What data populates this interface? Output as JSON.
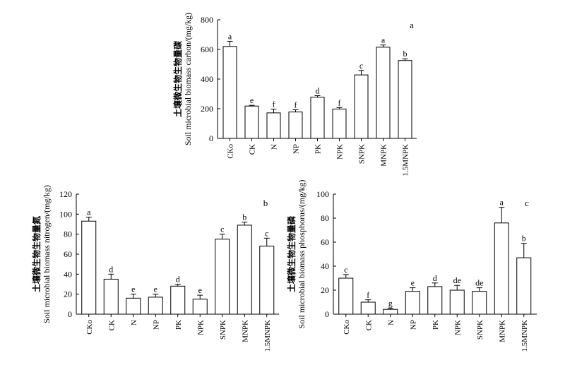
{
  "chart_data": [
    {
      "type": "bar",
      "panel_label": "a",
      "ylabel_cn": "土壤微生物生物量碳",
      "ylabel_en": "Soil microbial biomass carbon/(mg/kg)",
      "ylim": [
        0,
        800
      ],
      "yticks": [
        0,
        200,
        400,
        600,
        800
      ],
      "categories": [
        "CKo",
        "CK",
        "N",
        "NP",
        "PK",
        "NPK",
        "SNPK",
        "MNPK",
        "1.5MNPK"
      ],
      "values": [
        620,
        218,
        172,
        178,
        278,
        198,
        428,
        615,
        525
      ],
      "errors": [
        35,
        5,
        25,
        15,
        10,
        10,
        30,
        15,
        12
      ],
      "letters": [
        "a",
        "e",
        "f",
        "f",
        "d",
        "f",
        "c",
        "a",
        "b"
      ]
    },
    {
      "type": "bar",
      "panel_label": "b",
      "ylabel_cn": "土壤微生物生物量氮",
      "ylabel_en": "Soil microbial biomass nitrogen/(mg/kg)",
      "ylim": [
        0,
        120
      ],
      "yticks": [
        0,
        20,
        40,
        60,
        80,
        100,
        120
      ],
      "categories": [
        "CKo",
        "CK",
        "N",
        "NP",
        "PK",
        "NPK",
        "SNPK",
        "MNPK",
        "1.5MNPK"
      ],
      "values": [
        93,
        35,
        16,
        17,
        28,
        15,
        75,
        89,
        68
      ],
      "errors": [
        4,
        5,
        4,
        3,
        2,
        4,
        5,
        3,
        8
      ],
      "letters": [
        "a",
        "d",
        "e",
        "e",
        "d",
        "e",
        "c",
        "b",
        "c"
      ]
    },
    {
      "type": "bar",
      "panel_label": "c",
      "ylabel_cn": "土壤微生物生物量磷",
      "ylabel_en": "Soil microbial biomass phosphorus/(mg/kg)",
      "ylim": [
        0,
        100
      ],
      "yticks": [
        0,
        20,
        40,
        60,
        80,
        100
      ],
      "categories": [
        "CKo",
        "CK",
        "N",
        "NP",
        "PK",
        "NPK",
        "SNPK",
        "MNPK",
        "1.5MNPK"
      ],
      "values": [
        30,
        10,
        4,
        19,
        23,
        20,
        19,
        76,
        47
      ],
      "errors": [
        3,
        2,
        1,
        3,
        3,
        4,
        3,
        13,
        12
      ],
      "letters": [
        "c",
        "f",
        "g",
        "e",
        "d",
        "de",
        "de",
        "a",
        "b"
      ]
    }
  ]
}
